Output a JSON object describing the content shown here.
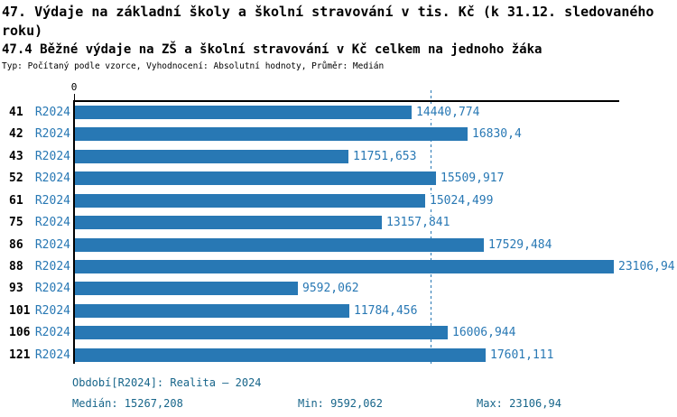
{
  "header": {
    "title": "47. Výdaje na základní školy a školní stravování v tis. Kč (k 31.12. sledovaného roku)",
    "subtitle": "47.4 Běžné výdaje na ZŠ a školní stravování v Kč celkem na jednoho žáka",
    "meta": "Typ: Počítaný podle vzorce, Vyhodnocení: Absolutní hodnoty, Průměr: Medián"
  },
  "chart_data": {
    "type": "bar",
    "orientation": "horizontal",
    "title": "47.4 Běžné výdaje na ZŠ a školní stravování v Kč celkem na jednoho žáka",
    "categories": [
      "41",
      "42",
      "43",
      "52",
      "61",
      "75",
      "86",
      "88",
      "93",
      "101",
      "106",
      "121"
    ],
    "series": [
      {
        "name": "R2024",
        "values": [
          14440.774,
          16830.4,
          11751.653,
          15509.917,
          15024.499,
          13157.841,
          17529.484,
          23106.94,
          9592.062,
          11784.456,
          16006.944,
          17601.111
        ]
      }
    ],
    "value_labels": [
      "14440,774",
      "16830,4",
      "11751,653",
      "15509,917",
      "15024,499",
      "13157,841",
      "17529,484",
      "23106,94",
      "9592,062",
      "11784,456",
      "16006,944",
      "17601,111"
    ],
    "axis_zero_label": "0",
    "xlim": [
      0,
      23340
    ],
    "median_value": 15267.208,
    "min_value": 9592.062,
    "max_value": 23106.94,
    "grid": false,
    "legend_position": "none",
    "colors": {
      "bar": "#2878b4",
      "median_line": "#2878b4",
      "value_text": "#2878b4",
      "series_text": "#2878b4",
      "category_text": "#000000",
      "axis": "#000000",
      "footer_text": "#17658a"
    }
  },
  "footer": {
    "period_label": "Období[R2024]: Realita – 2024",
    "median_label": "Medián: 15267,208",
    "min_label": "Min: 9592,062",
    "max_label": "Max: 23106,94"
  }
}
